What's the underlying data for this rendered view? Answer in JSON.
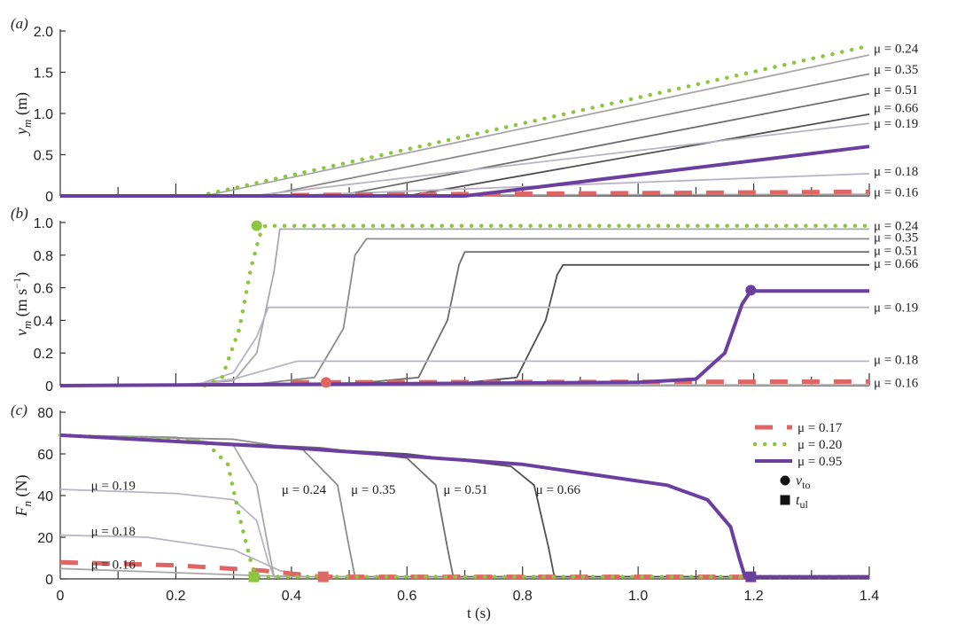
{
  "chart_data": [
    {
      "type": "line",
      "panel_label": "(a)",
      "ylabel": "y_m (m)",
      "ylabel_main": "y",
      "ylabel_sub": "m",
      "ylabel_unit": " (m)",
      "xlim": [
        0,
        1.4
      ],
      "ylim": [
        0,
        2.0
      ],
      "yticks": [
        0,
        0.5,
        1.0,
        1.5,
        2.0
      ],
      "ytick_labels": [
        "0",
        "0.5",
        "1.0",
        "1.5",
        "2.0"
      ],
      "series": [
        {
          "name": "μ = 0.24",
          "style": "gray",
          "color": "#a8a8a8",
          "points": [
            [
              0,
              0
            ],
            [
              0.25,
              0
            ],
            [
              1.4,
              1.71
            ]
          ]
        },
        {
          "name": "μ = 0.35",
          "style": "gray",
          "color": "#8c8c8c",
          "points": [
            [
              0,
              0
            ],
            [
              0.35,
              0
            ],
            [
              1.4,
              1.48
            ]
          ]
        },
        {
          "name": "μ = 0.51",
          "style": "gray",
          "color": "#6e6e6e",
          "points": [
            [
              0,
              0
            ],
            [
              0.48,
              0
            ],
            [
              1.4,
              1.24
            ]
          ]
        },
        {
          "name": "μ = 0.66",
          "style": "gray",
          "color": "#4f4f4f",
          "points": [
            [
              0,
              0
            ],
            [
              0.6,
              0
            ],
            [
              1.4,
              0.99
            ]
          ]
        },
        {
          "name": "μ = 0.19",
          "style": "gray",
          "color": "#b9b3c3",
          "points": [
            [
              0,
              0
            ],
            [
              0.33,
              0
            ],
            [
              1.4,
              0.88
            ]
          ]
        },
        {
          "name": "μ = 0.18",
          "style": "gray",
          "color": "#b9b3c3",
          "points": [
            [
              0,
              0
            ],
            [
              0.38,
              0
            ],
            [
              1.4,
              0.27
            ]
          ]
        },
        {
          "name": "μ = 0.16",
          "style": "gray",
          "color": "#a8a8a8",
          "points": [
            [
              0,
              0
            ],
            [
              1.4,
              0.02
            ]
          ]
        },
        {
          "name": "μ = 0.17",
          "style": "dashed",
          "color": "#e06666",
          "points": [
            [
              0.4,
              0.01
            ],
            [
              1.4,
              0.05
            ]
          ]
        },
        {
          "name": "μ = 0.20",
          "style": "dotted",
          "color": "#8cc63f",
          "points": [
            [
              0.24,
              0
            ],
            [
              1.4,
              1.82
            ]
          ]
        },
        {
          "name": "μ = 0.95",
          "style": "purple",
          "color": "#6b3fa0",
          "points": [
            [
              0,
              0
            ],
            [
              0.7,
              0
            ],
            [
              0.76,
              0.05
            ],
            [
              1.4,
              0.6
            ]
          ]
        }
      ],
      "right_labels": [
        {
          "text": "μ = 0.24",
          "value": 1.79
        },
        {
          "text": "μ = 0.35",
          "value": 1.54
        },
        {
          "text": "μ = 0.51",
          "value": 1.29
        },
        {
          "text": "μ = 0.66",
          "value": 1.07
        },
        {
          "text": "μ = 0.19",
          "value": 0.88
        },
        {
          "text": "μ = 0.18",
          "value": 0.3
        },
        {
          "text": "μ = 0.16",
          "value": 0.05
        }
      ]
    },
    {
      "type": "line",
      "panel_label": "(b)",
      "ylabel": "v_m (m s^-1)",
      "ylabel_main": "v",
      "ylabel_sub": "m",
      "ylabel_unit": " (m s",
      "ylabel_sup": "−1",
      "ylabel_close": ")",
      "xlim": [
        0,
        1.4
      ],
      "ylim": [
        0,
        1.0
      ],
      "yticks": [
        0,
        0.2,
        0.4,
        0.6,
        0.8,
        1.0
      ],
      "ytick_labels": [
        "0",
        "0.2",
        "0.4",
        "0.6",
        "0.8",
        "1.0"
      ],
      "series": [
        {
          "name": "μ = 0.24",
          "style": "gray",
          "color": "#a8a8a8",
          "points": [
            [
              0,
              0
            ],
            [
              0.2,
              0.002
            ],
            [
              0.3,
              0.03
            ],
            [
              0.34,
              0.2
            ],
            [
              0.37,
              0.7
            ],
            [
              0.38,
              0.96
            ],
            [
              1.4,
              0.96
            ]
          ]
        },
        {
          "name": "μ = 0.35",
          "style": "gray",
          "color": "#8c8c8c",
          "points": [
            [
              0,
              0
            ],
            [
              0.34,
              0.01
            ],
            [
              0.44,
              0.05
            ],
            [
              0.49,
              0.35
            ],
            [
              0.51,
              0.8
            ],
            [
              0.53,
              0.9
            ],
            [
              1.4,
              0.9
            ]
          ]
        },
        {
          "name": "μ = 0.51",
          "style": "gray",
          "color": "#6e6e6e",
          "points": [
            [
              0,
              0
            ],
            [
              0.5,
              0.01
            ],
            [
              0.62,
              0.05
            ],
            [
              0.67,
              0.4
            ],
            [
              0.69,
              0.74
            ],
            [
              0.7,
              0.82
            ],
            [
              1.4,
              0.82
            ]
          ]
        },
        {
          "name": "μ = 0.66",
          "style": "gray",
          "color": "#4f4f4f",
          "points": [
            [
              0,
              0
            ],
            [
              0.68,
              0.01
            ],
            [
              0.79,
              0.05
            ],
            [
              0.84,
              0.4
            ],
            [
              0.86,
              0.68
            ],
            [
              0.87,
              0.74
            ],
            [
              1.4,
              0.74
            ]
          ]
        },
        {
          "name": "μ = 0.19",
          "style": "gray",
          "color": "#b9b3c3",
          "points": [
            [
              0,
              0
            ],
            [
              0.24,
              0.01
            ],
            [
              0.3,
              0.08
            ],
            [
              0.34,
              0.3
            ],
            [
              0.36,
              0.48
            ],
            [
              1.4,
              0.48
            ]
          ]
        },
        {
          "name": "μ = 0.18",
          "style": "gray",
          "color": "#b9b3c3",
          "points": [
            [
              0,
              0
            ],
            [
              0.22,
              0.005
            ],
            [
              0.3,
              0.04
            ],
            [
              0.38,
              0.12
            ],
            [
              0.41,
              0.15
            ],
            [
              1.4,
              0.15
            ]
          ]
        },
        {
          "name": "μ = 0.16",
          "style": "gray",
          "color": "#a8a8a8",
          "points": [
            [
              0,
              0
            ],
            [
              1.4,
              0.005
            ]
          ]
        },
        {
          "name": "μ = 0.17",
          "style": "dashed",
          "color": "#e06666",
          "points": [
            [
              0.4,
              0.02
            ],
            [
              1.4,
              0.025
            ]
          ]
        },
        {
          "name": "μ = 0.20",
          "style": "dotted",
          "color": "#8cc63f",
          "points": [
            [
              0.25,
              0
            ],
            [
              0.28,
              0.05
            ],
            [
              0.31,
              0.35
            ],
            [
              0.33,
              0.72
            ],
            [
              0.345,
              0.92
            ],
            [
              0.355,
              0.98
            ],
            [
              1.4,
              0.98
            ]
          ]
        },
        {
          "name": "μ = 0.95",
          "style": "purple",
          "color": "#6b3fa0",
          "points": [
            [
              0,
              0
            ],
            [
              1.0,
              0.02
            ],
            [
              1.1,
              0.04
            ],
            [
              1.15,
              0.2
            ],
            [
              1.18,
              0.5
            ],
            [
              1.195,
              0.58
            ],
            [
              1.4,
              0.58
            ]
          ]
        }
      ],
      "markers": [
        {
          "series": "μ = 0.20",
          "shape": "circle",
          "x": 0.34,
          "y": 0.98,
          "color": "#8cc63f"
        },
        {
          "series": "μ = 0.17",
          "shape": "circle",
          "x": 0.46,
          "y": 0.02,
          "color": "#e06666"
        },
        {
          "series": "μ = 0.95",
          "shape": "circle",
          "x": 1.195,
          "y": 0.585,
          "color": "#6b3fa0"
        }
      ],
      "right_labels": [
        {
          "text": "μ = 0.24",
          "value": 0.98
        },
        {
          "text": "μ = 0.35",
          "value": 0.91
        },
        {
          "text": "μ = 0.51",
          "value": 0.83
        },
        {
          "text": "μ = 0.66",
          "value": 0.75
        },
        {
          "text": "μ = 0.19",
          "value": 0.48
        },
        {
          "text": "μ = 0.18",
          "value": 0.16
        },
        {
          "text": "μ = 0.16",
          "value": 0.02
        }
      ]
    },
    {
      "type": "line",
      "panel_label": "(c)",
      "ylabel": "F_n (N)",
      "ylabel_main": "F",
      "ylabel_sub": "n",
      "ylabel_unit": " (N)",
      "xlabel": "t (s)",
      "xlim": [
        0,
        1.4
      ],
      "ylim": [
        0,
        80
      ],
      "yticks": [
        0,
        20,
        40,
        60,
        80
      ],
      "ytick_labels": [
        "0",
        "20",
        "40",
        "60",
        "80"
      ],
      "xticks": [
        0,
        0.2,
        0.4,
        0.6,
        0.8,
        1.0,
        1.2,
        1.4
      ],
      "xtick_labels": [
        "0",
        "0.2",
        "0.4",
        "0.6",
        "0.8",
        "1.0",
        "1.2",
        "1.4"
      ],
      "series": [
        {
          "name": "μ = 0.19",
          "style": "gray",
          "color": "#b9b3c3",
          "points": [
            [
              0,
              43
            ],
            [
              0.2,
              41
            ],
            [
              0.3,
              38
            ],
            [
              0.34,
              28
            ],
            [
              0.36,
              8
            ],
            [
              0.37,
              1
            ],
            [
              1.4,
              1
            ]
          ]
        },
        {
          "name": "μ = 0.18",
          "style": "gray",
          "color": "#b9b3c3",
          "points": [
            [
              0,
              21
            ],
            [
              0.15,
              20
            ],
            [
              0.3,
              14
            ],
            [
              0.38,
              4
            ],
            [
              0.42,
              1
            ],
            [
              1.4,
              1
            ]
          ]
        },
        {
          "name": "μ = 0.16",
          "style": "gray",
          "color": "#a8a8a8",
          "points": [
            [
              0,
              5
            ],
            [
              0.2,
              3
            ],
            [
              0.35,
              1.5
            ],
            [
              0.45,
              1
            ],
            [
              1.4,
              1
            ]
          ]
        },
        {
          "name": "μ = 0.24",
          "style": "gray",
          "color": "#a8a8a8",
          "points": [
            [
              0,
              69
            ],
            [
              0.2,
              68
            ],
            [
              0.3,
              64
            ],
            [
              0.34,
              45
            ],
            [
              0.36,
              15
            ],
            [
              0.37,
              1
            ],
            [
              1.4,
              1
            ]
          ]
        },
        {
          "name": "μ = 0.35",
          "style": "gray",
          "color": "#8c8c8c",
          "points": [
            [
              0,
              69
            ],
            [
              0.3,
              67
            ],
            [
              0.42,
              62
            ],
            [
              0.48,
              45
            ],
            [
              0.5,
              15
            ],
            [
              0.51,
              1
            ],
            [
              1.4,
              1
            ]
          ]
        },
        {
          "name": "μ = 0.51",
          "style": "gray",
          "color": "#6e6e6e",
          "points": [
            [
              0,
              69
            ],
            [
              0.45,
              63
            ],
            [
              0.6,
              58
            ],
            [
              0.65,
              45
            ],
            [
              0.67,
              15
            ],
            [
              0.68,
              1
            ],
            [
              1.4,
              1
            ]
          ]
        },
        {
          "name": "μ = 0.66",
          "style": "gray",
          "color": "#4f4f4f",
          "points": [
            [
              0,
              69
            ],
            [
              0.6,
              60
            ],
            [
              0.78,
              54
            ],
            [
              0.82,
              45
            ],
            [
              0.845,
              15
            ],
            [
              0.855,
              1
            ],
            [
              1.4,
              1
            ]
          ]
        },
        {
          "name": "μ = 0.17",
          "style": "dashed",
          "color": "#e06666",
          "points": [
            [
              0,
              8
            ],
            [
              0.2,
              6.5
            ],
            [
              0.35,
              4
            ],
            [
              0.42,
              2
            ],
            [
              0.45,
              1
            ],
            [
              1.2,
              1
            ]
          ]
        },
        {
          "name": "μ = 0.20",
          "style": "dotted",
          "color": "#8cc63f",
          "points": [
            [
              0,
              69
            ],
            [
              0.25,
              66
            ],
            [
              0.29,
              55
            ],
            [
              0.31,
              30
            ],
            [
              0.33,
              8
            ],
            [
              0.34,
              1
            ],
            [
              1.4,
              1
            ]
          ]
        },
        {
          "name": "μ = 0.95",
          "style": "purple",
          "color": "#6b3fa0",
          "points": [
            [
              0,
              69
            ],
            [
              0.4,
              63
            ],
            [
              0.8,
              55
            ],
            [
              1.05,
              45
            ],
            [
              1.12,
              38
            ],
            [
              1.16,
              25
            ],
            [
              1.175,
              10
            ],
            [
              1.185,
              1
            ],
            [
              1.4,
              1
            ]
          ]
        }
      ],
      "markers": [
        {
          "series": "μ = 0.20",
          "shape": "square",
          "x": 0.335,
          "y": 1,
          "color": "#8cc63f"
        },
        {
          "series": "μ = 0.17",
          "shape": "square",
          "x": 0.455,
          "y": 1,
          "color": "#e06666"
        },
        {
          "series": "μ = 0.95",
          "shape": "square",
          "x": 1.195,
          "y": 1,
          "color": "#6b3fa0"
        }
      ],
      "annotations": [
        {
          "text": "μ = 0.19",
          "x": 0.05,
          "y": 45
        },
        {
          "text": "μ = 0.18",
          "x": 0.05,
          "y": 23
        },
        {
          "text": "μ = 0.16",
          "x": 0.05,
          "y": 7
        },
        {
          "text": "μ = 0.24",
          "x": 0.38,
          "y": 43
        },
        {
          "text": "μ = 0.35",
          "x": 0.5,
          "y": 43
        },
        {
          "text": "μ = 0.51",
          "x": 0.66,
          "y": 43
        },
        {
          "text": "μ = 0.66",
          "x": 0.82,
          "y": 43
        }
      ],
      "legend": {
        "position": "top-right",
        "entries": [
          {
            "label": "μ = 0.17",
            "style": "dashed",
            "color": "#e06666"
          },
          {
            "label": "μ = 0.20",
            "style": "dotted",
            "color": "#8cc63f"
          },
          {
            "label": "μ = 0.95",
            "style": "purple",
            "color": "#6b3fa0"
          }
        ],
        "marker_entries": [
          {
            "shape": "circle",
            "label_main": "v",
            "label_sub": "to"
          },
          {
            "shape": "square",
            "label_main": "t",
            "label_sub": "ul"
          }
        ]
      }
    }
  ]
}
